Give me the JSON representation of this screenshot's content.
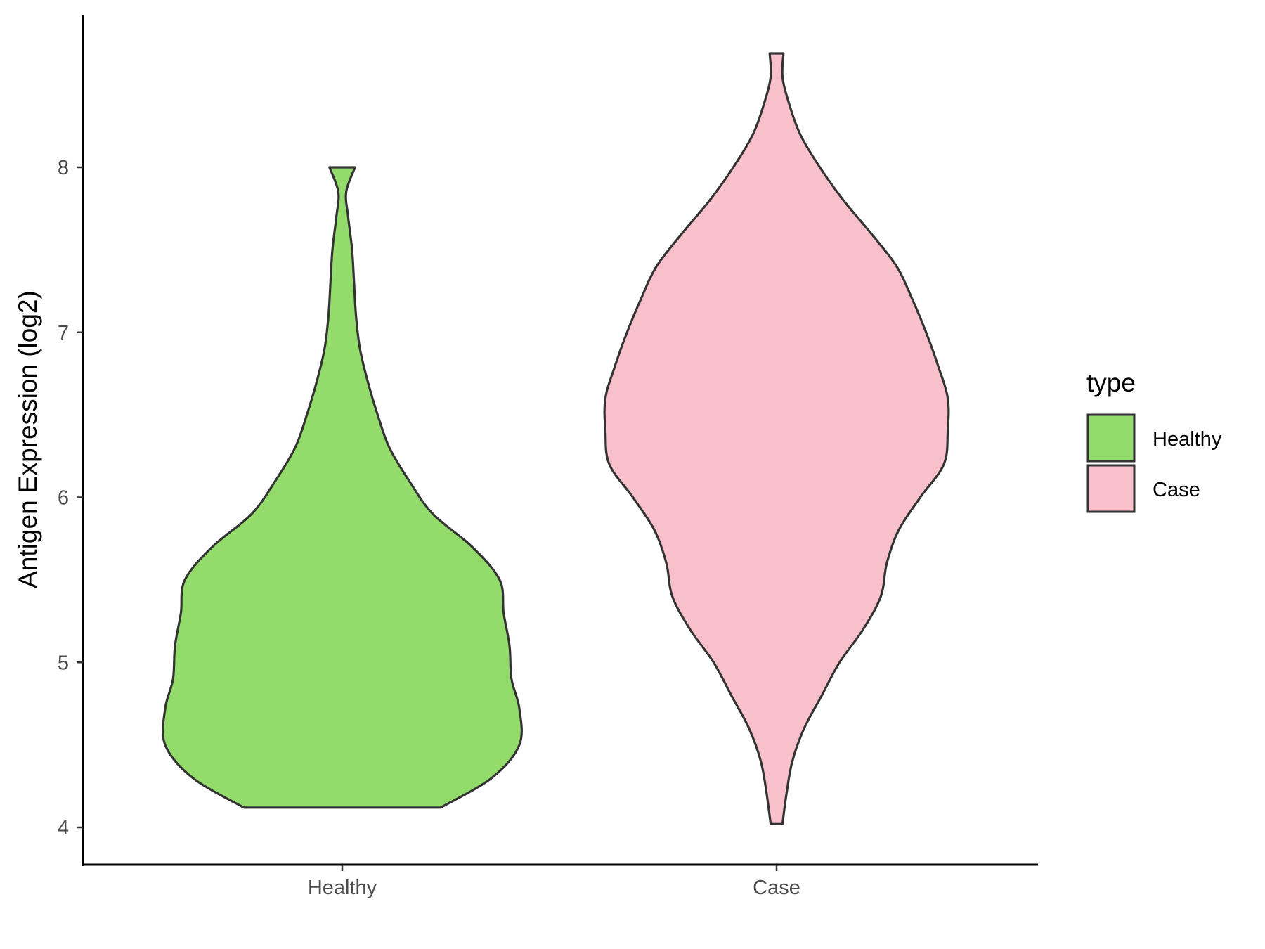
{
  "chart_data": {
    "type": "violin",
    "ylabel": "Antigen Expression (log2)",
    "xlabel": "",
    "ylim": [
      3.93,
      8.9
    ],
    "yticks": [
      4,
      5,
      6,
      7,
      8
    ],
    "grid": false,
    "legend": {
      "title": "type",
      "placement": "right",
      "entries": [
        {
          "label": "Healthy",
          "color": "#93dc6b"
        },
        {
          "label": "Case",
          "color": "#f8c0cb"
        }
      ]
    },
    "categories": [
      "Healthy",
      "Case"
    ],
    "series": [
      {
        "name": "Healthy",
        "color": "#93dc6b",
        "density": [
          [
            4.12,
            0.5
          ],
          [
            4.3,
            0.76
          ],
          [
            4.5,
            0.9
          ],
          [
            4.72,
            0.9
          ],
          [
            4.9,
            0.86
          ],
          [
            5.1,
            0.85
          ],
          [
            5.3,
            0.82
          ],
          [
            5.5,
            0.8
          ],
          [
            5.7,
            0.66
          ],
          [
            5.9,
            0.46
          ],
          [
            6.1,
            0.34
          ],
          [
            6.3,
            0.24
          ],
          [
            6.5,
            0.18
          ],
          [
            6.7,
            0.13
          ],
          [
            6.9,
            0.09
          ],
          [
            7.1,
            0.07
          ],
          [
            7.3,
            0.06
          ],
          [
            7.5,
            0.05
          ],
          [
            7.7,
            0.03
          ],
          [
            7.85,
            0.02
          ],
          [
            8.0,
            0.065
          ]
        ]
      },
      {
        "name": "Case",
        "color": "#f8c0cb",
        "density": [
          [
            4.02,
            0.03
          ],
          [
            4.2,
            0.05
          ],
          [
            4.4,
            0.08
          ],
          [
            4.6,
            0.14
          ],
          [
            4.8,
            0.23
          ],
          [
            5.0,
            0.32
          ],
          [
            5.2,
            0.44
          ],
          [
            5.4,
            0.53
          ],
          [
            5.6,
            0.56
          ],
          [
            5.8,
            0.62
          ],
          [
            6.0,
            0.73
          ],
          [
            6.2,
            0.85
          ],
          [
            6.4,
            0.87
          ],
          [
            6.6,
            0.87
          ],
          [
            6.8,
            0.82
          ],
          [
            7.0,
            0.76
          ],
          [
            7.2,
            0.69
          ],
          [
            7.4,
            0.61
          ],
          [
            7.6,
            0.48
          ],
          [
            7.8,
            0.34
          ],
          [
            8.0,
            0.22
          ],
          [
            8.2,
            0.12
          ],
          [
            8.4,
            0.06
          ],
          [
            8.55,
            0.03
          ],
          [
            8.69,
            0.035
          ]
        ]
      }
    ]
  }
}
